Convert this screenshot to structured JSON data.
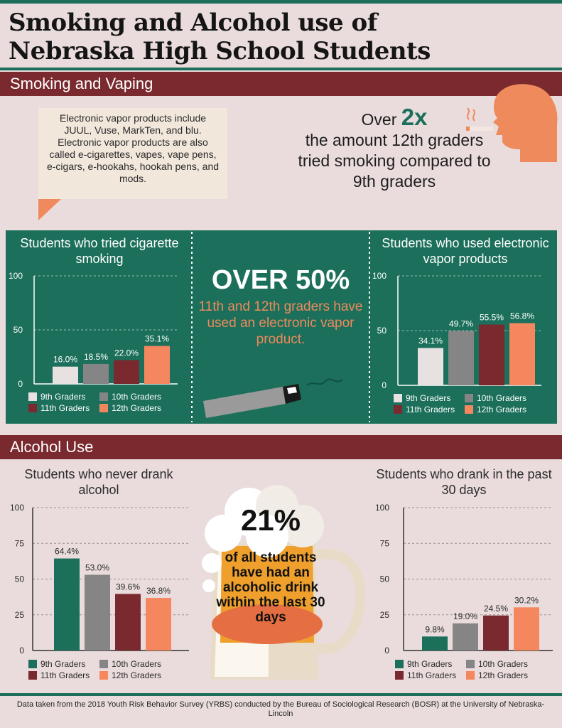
{
  "header": {
    "title_line1": "Smoking and Alcohol use of",
    "title_line2": "Nebraska High School Students"
  },
  "sections": {
    "smoking": "Smoking and Vaping",
    "alcohol": "Alcohol Use"
  },
  "callout": {
    "text": "Electronic vapor products include JUUL, Vuse, MarkTen, and blu. Electronic vapor products are also called e-cigarettes, vapes, vape pens, e-cigars, e-hookahs, hookah pens, and mods."
  },
  "smoking_stat": {
    "prefix": "Over",
    "big": "2x",
    "text": "the amount 12th graders tried smoking compared to 9th graders"
  },
  "vape_stat": {
    "big": "OVER 50%",
    "text": "11th and 12th graders have used an electronic vapor product."
  },
  "alcohol_stat": {
    "big": "21%",
    "text": "of all students have had an alcoholic drink within the last 30 days"
  },
  "footnote": "Data taken from the 2018 Youth Risk Behavior Survey (YRBS) conducted by the Bureau of Sociological Research (BOSR) at the University of Nebraska-Lincoln",
  "colors": {
    "green": "#1b6f5b",
    "maroon": "#7a2a2e",
    "background": "#eadcdc",
    "salmon": "#f5875f",
    "grade9_on_green": "#e8e1e1",
    "grade10": "#858585",
    "grade11": "#7a2a2e",
    "grade12": "#f5875f"
  },
  "icons": [
    "smoking-person-icon",
    "e-cigarette-icon",
    "beer-mug-icon"
  ],
  "chart_data": [
    {
      "type": "bar",
      "title": "Students who tried cigarette smoking",
      "categories": [
        "9th Graders",
        "10th Graders",
        "11th Graders",
        "12th Graders"
      ],
      "values": [
        16.0,
        18.5,
        22.0,
        35.1
      ],
      "value_labels": [
        "16.0%",
        "18.5%",
        "22.0%",
        "35.1%"
      ],
      "yticks": [
        0,
        50,
        100
      ],
      "ylim": [
        0,
        100
      ],
      "legend": [
        "9th Graders",
        "10th Graders",
        "11th Graders",
        "12th Graders"
      ],
      "legend_position": "bottom"
    },
    {
      "type": "bar",
      "title": "Students who used electronic vapor products",
      "categories": [
        "9th Graders",
        "10th Graders",
        "11th Graders",
        "12th Graders"
      ],
      "values": [
        34.1,
        49.7,
        55.5,
        56.8
      ],
      "value_labels": [
        "34.1%",
        "49.7%",
        "55.5%",
        "56.8%"
      ],
      "yticks": [
        0,
        50,
        100
      ],
      "ylim": [
        0,
        100
      ],
      "legend": [
        "9th Graders",
        "10th Graders",
        "11th Graders",
        "12th Graders"
      ],
      "legend_position": "bottom"
    },
    {
      "type": "bar",
      "title": "Students who never drank alcohol",
      "categories": [
        "9th Graders",
        "10th Graders",
        "11th Graders",
        "12th Graders"
      ],
      "values": [
        64.4,
        53.0,
        39.6,
        36.8
      ],
      "value_labels": [
        "64.4%",
        "53.0%",
        "39.6%",
        "36.8%"
      ],
      "yticks": [
        0,
        25,
        50,
        75,
        100
      ],
      "ylim": [
        0,
        100
      ],
      "legend": [
        "9th Graders",
        "10th Graders",
        "11th Graders",
        "12th Graders"
      ],
      "legend_position": "bottom"
    },
    {
      "type": "bar",
      "title": "Students who drank in the past 30 days",
      "categories": [
        "9th Graders",
        "10th Graders",
        "11th Graders",
        "12th Graders"
      ],
      "values": [
        9.8,
        19.0,
        24.5,
        30.2
      ],
      "value_labels": [
        "9.8%",
        "19.0%",
        "24.5%",
        "30.2%"
      ],
      "yticks": [
        0,
        25,
        50,
        75,
        100
      ],
      "ylim": [
        0,
        100
      ],
      "legend": [
        "9th Graders",
        "10th Graders",
        "11th Graders",
        "12th Graders"
      ],
      "legend_position": "bottom"
    }
  ]
}
